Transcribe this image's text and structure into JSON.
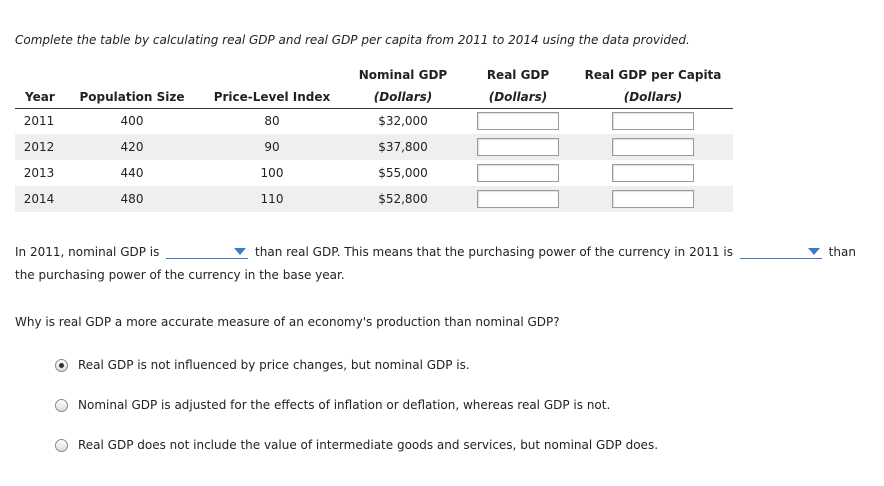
{
  "instruction": "Complete the table by calculating real GDP and real GDP per capita from 2011 to 2014 using the data provided.",
  "table": {
    "headers": {
      "year": "Year",
      "population": "Population Size",
      "price_index": "Price-Level Index",
      "nominal": "Nominal GDP",
      "nominal_unit": "(Dollars)",
      "real": "Real GDP",
      "real_unit": "(Dollars)",
      "per_capita": "Real GDP per Capita",
      "per_capita_unit": "(Dollars)"
    },
    "rows": [
      {
        "year": "2011",
        "population": "400",
        "price_index": "80",
        "nominal": "$32,000",
        "real": "",
        "per_capita": ""
      },
      {
        "year": "2012",
        "population": "420",
        "price_index": "90",
        "nominal": "$37,800",
        "real": "",
        "per_capita": ""
      },
      {
        "year": "2013",
        "population": "440",
        "price_index": "100",
        "nominal": "$55,000",
        "real": "",
        "per_capita": ""
      },
      {
        "year": "2014",
        "population": "480",
        "price_index": "110",
        "nominal": "$52,800",
        "real": "",
        "per_capita": ""
      }
    ]
  },
  "sentence": {
    "part1": "In 2011, nominal GDP is",
    "dropdown1": "",
    "part2": "than real GDP. This means that the purchasing power of the currency in 2011 is",
    "dropdown2": "",
    "part3": "than the purchasing power of the currency in the base year."
  },
  "question": "Why is real GDP a more accurate measure of an economy's production than nominal GDP?",
  "options": [
    {
      "label": "Real GDP is not influenced by price changes, but nominal GDP is.",
      "selected": true
    },
    {
      "label": "Nominal GDP is adjusted for the effects of inflation or deflation, whereas real GDP is not.",
      "selected": false
    },
    {
      "label": "Real GDP does not include the value of intermediate goods and services, but nominal GDP does.",
      "selected": false
    }
  ]
}
